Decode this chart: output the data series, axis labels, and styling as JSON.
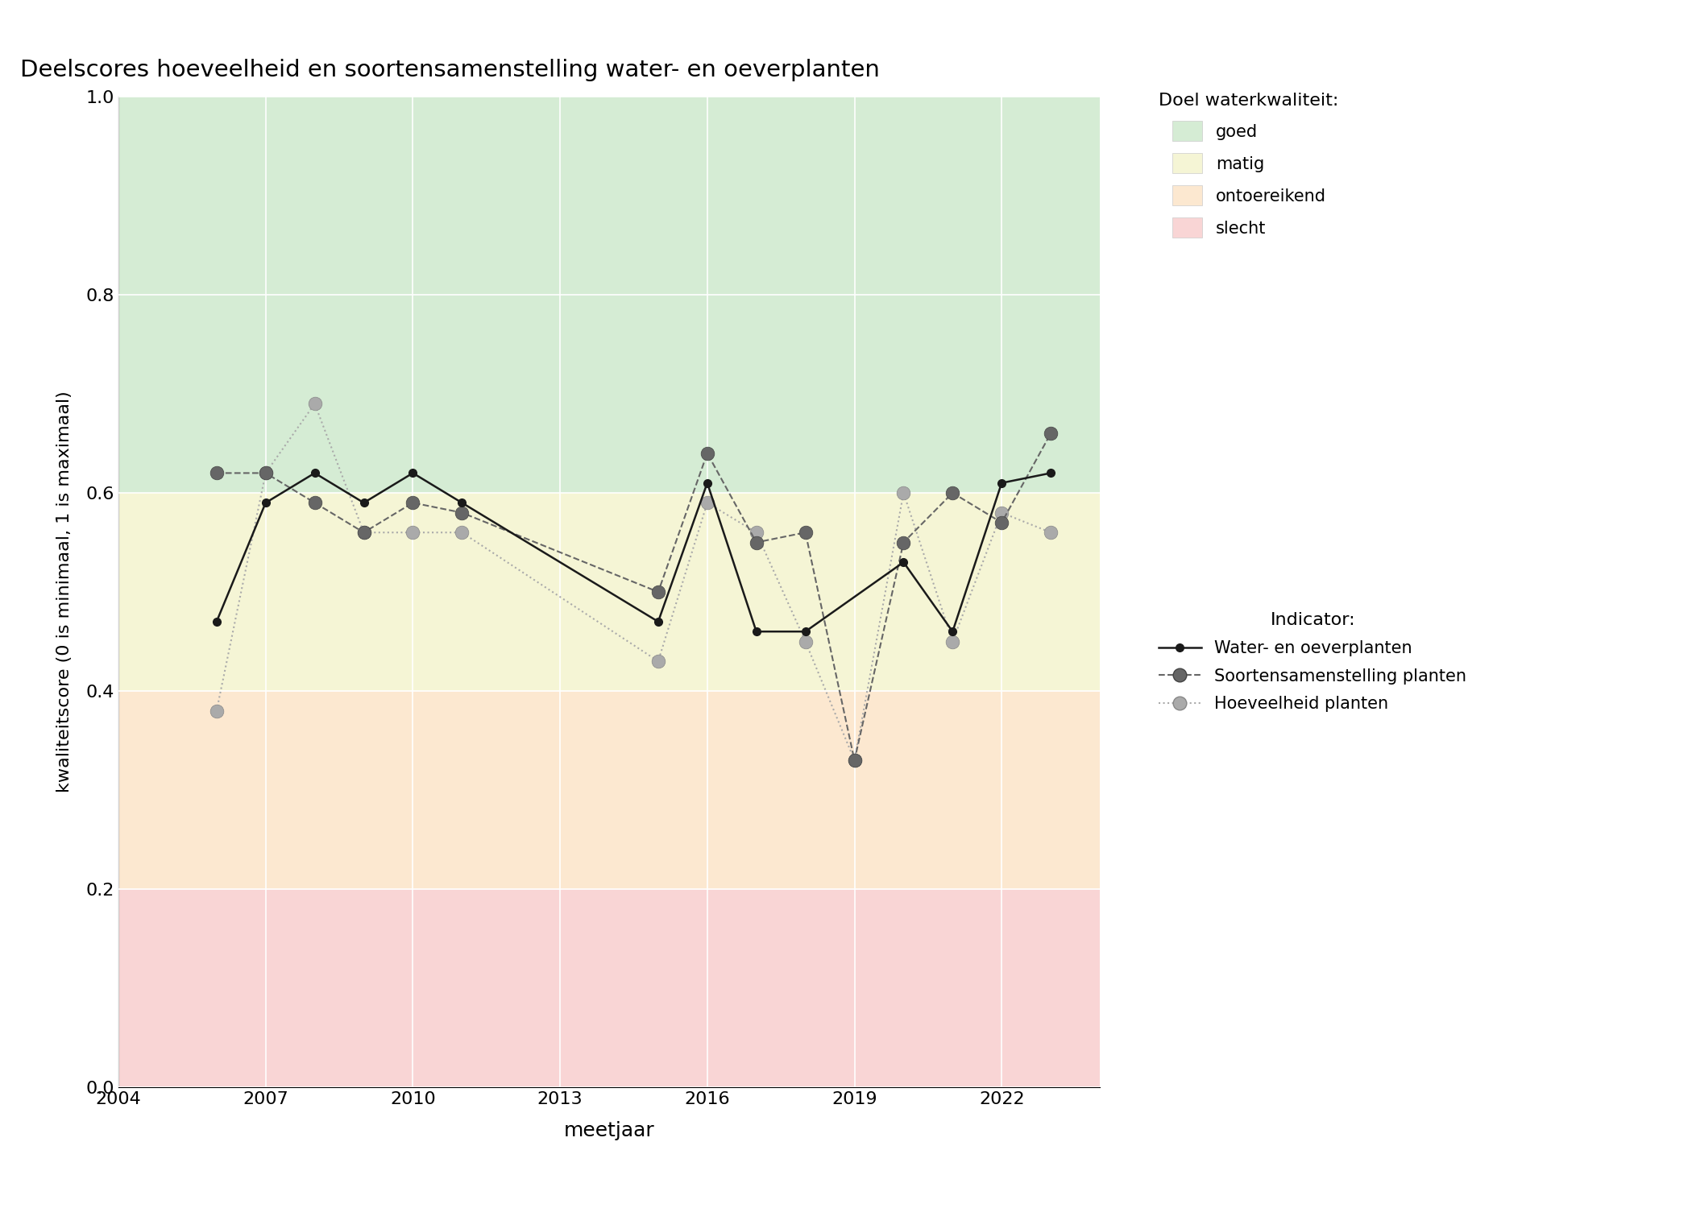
{
  "title": "Deelscores hoeveelheid en soortensamenstelling water- en oeverplanten",
  "xlabel": "meetjaar",
  "ylabel": "kwaliteitscore (0 is minimaal, 1 is maximaal)",
  "xlim": [
    2004,
    2024
  ],
  "ylim": [
    0.0,
    1.0
  ],
  "xticks": [
    2004,
    2007,
    2010,
    2013,
    2016,
    2019,
    2022
  ],
  "yticks": [
    0.0,
    0.2,
    0.4,
    0.6,
    0.8,
    1.0
  ],
  "zones": [
    {
      "ymin": 0.6,
      "ymax": 1.0,
      "color": "#d5ecd4",
      "label": "goed"
    },
    {
      "ymin": 0.4,
      "ymax": 0.6,
      "color": "#f5f5d5",
      "label": "matig"
    },
    {
      "ymin": 0.2,
      "ymax": 0.4,
      "color": "#fce8d0",
      "label": "ontoereikend"
    },
    {
      "ymin": 0.0,
      "ymax": 0.2,
      "color": "#f9d5d5",
      "label": "slecht"
    }
  ],
  "water_oever": {
    "years": [
      2006,
      2007,
      2008,
      2009,
      2010,
      2011,
      2015,
      2016,
      2017,
      2018,
      2020,
      2021,
      2022,
      2023
    ],
    "values": [
      0.47,
      0.59,
      0.62,
      0.59,
      0.62,
      0.59,
      0.47,
      0.61,
      0.46,
      0.46,
      0.53,
      0.46,
      0.61,
      0.62
    ],
    "color": "#1a1a1a",
    "linestyle": "-",
    "linewidth": 1.8,
    "marker": "o",
    "markersize": 7,
    "markerfacecolor": "#1a1a1a",
    "markeredgecolor": "#1a1a1a",
    "label": "Water- en oeverplanten"
  },
  "soortensamenstelling": {
    "years": [
      2006,
      2007,
      2008,
      2009,
      2010,
      2011,
      2015,
      2016,
      2017,
      2018,
      2019,
      2020,
      2021,
      2022,
      2023
    ],
    "values": [
      0.62,
      0.62,
      0.59,
      0.56,
      0.59,
      0.58,
      0.5,
      0.64,
      0.55,
      0.56,
      0.33,
      0.55,
      0.6,
      0.57,
      0.66
    ],
    "color": "#666666",
    "linestyle": "--",
    "linewidth": 1.5,
    "marker": "o",
    "markersize": 12,
    "markerfacecolor": "#666666",
    "markeredgecolor": "#444444",
    "label": "Soortensamenstelling planten"
  },
  "hoeveelheid": {
    "years": [
      2006,
      2007,
      2008,
      2009,
      2010,
      2011,
      2015,
      2016,
      2017,
      2018,
      2019,
      2020,
      2021,
      2022,
      2023
    ],
    "values": [
      0.38,
      0.62,
      0.69,
      0.56,
      0.56,
      0.56,
      0.43,
      0.59,
      0.56,
      0.45,
      0.33,
      0.6,
      0.45,
      0.58,
      0.56
    ],
    "color": "#aaaaaa",
    "linestyle": ":",
    "linewidth": 1.5,
    "marker": "o",
    "markersize": 12,
    "markerfacecolor": "#aaaaaa",
    "markeredgecolor": "#888888",
    "label": "Hoeveelheid planten"
  },
  "legend_doel_title": "Doel waterkwaliteit:",
  "legend_indicator_title": "Indicator:",
  "legend_zone_patch_size": 1.5,
  "figsize": [
    21.0,
    15.0
  ],
  "dpi": 100
}
